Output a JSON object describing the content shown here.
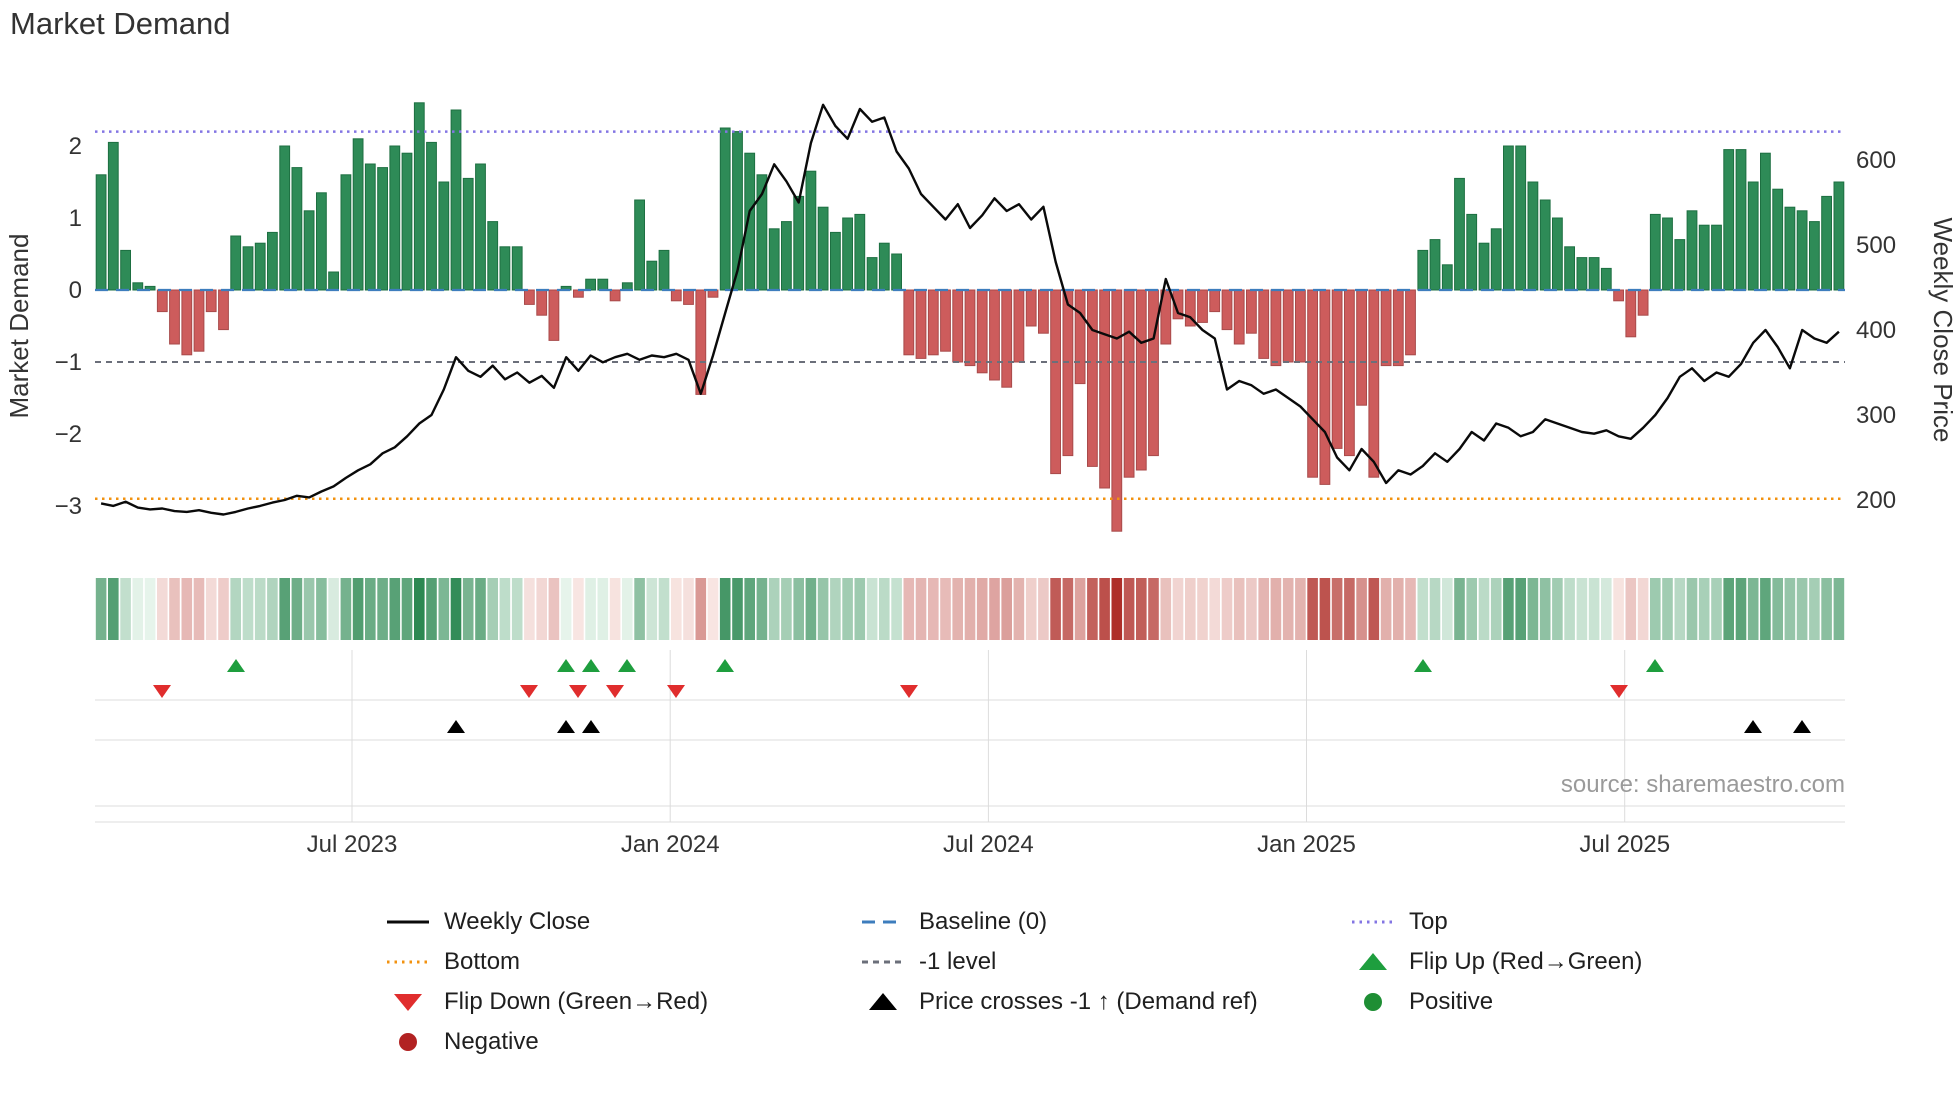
{
  "title": "Market Demand",
  "source": "source: sharemaestro.com",
  "colors": {
    "bar_positive": "#2E8B57",
    "bar_positive_edge": "#1d6f41",
    "bar_negative": "#CD5C5C",
    "bar_negative_edge": "#a84a4a",
    "price_line": "#0a0a0a",
    "baseline": "#3d7dbd",
    "top": "#8375e3",
    "bottom": "#f2920f",
    "minus_one": "#6b6f7a",
    "flip_up": "#1e9e3e",
    "flip_down": "#e02d2d",
    "price_cross": "#000000",
    "positive_dot": "#1e8e34",
    "negative_dot": "#B22222"
  },
  "legend": {
    "weekly_close": "Weekly Close",
    "baseline": "Baseline (0)",
    "top": "Top",
    "bottom": "Bottom",
    "minus_one": "-1 level",
    "flip_up": "Flip Up (Red→Green)",
    "flip_down": "Flip Down (Green→Red)",
    "price_cross": "Price crosses -1 ↑ (Demand ref)",
    "positive": "Positive",
    "negative": "Negative"
  },
  "chart_data": {
    "type": "line+bar",
    "title": "Market Demand",
    "x_axis": {
      "n_points": 143,
      "ticks": [
        {
          "label": "Jul 2023",
          "pos": 20.5
        },
        {
          "label": "Jan 2024",
          "pos": 46.5
        },
        {
          "label": "Jul 2024",
          "pos": 72.5
        },
        {
          "label": "Jan 2025",
          "pos": 98.5
        },
        {
          "label": "Jul 2025",
          "pos": 124.5
        }
      ]
    },
    "left_axis": {
      "label": "Market Demand",
      "range": [
        -3.6,
        2.9
      ],
      "ticks": [
        {
          "label": "2",
          "value": 2
        },
        {
          "label": "1",
          "value": 1
        },
        {
          "label": "0",
          "value": 0
        },
        {
          "label": "−1",
          "value": -1
        },
        {
          "label": "−2",
          "value": -2
        },
        {
          "label": "−3",
          "value": -3
        }
      ]
    },
    "right_axis": {
      "label": "Weekly Close Price",
      "range": [
        150,
        700
      ],
      "ticks": [
        {
          "label": "600",
          "value": 600
        },
        {
          "label": "500",
          "value": 500
        },
        {
          "label": "400",
          "value": 400
        },
        {
          "label": "300",
          "value": 300
        },
        {
          "label": "200",
          "value": 200
        }
      ]
    },
    "series": [
      {
        "name": "Market Demand",
        "type": "bar",
        "axis": "left",
        "values": [
          1.6,
          2.05,
          0.55,
          0.1,
          0.05,
          -0.3,
          -0.75,
          -0.9,
          -0.85,
          -0.3,
          -0.55,
          0.75,
          0.6,
          0.65,
          0.8,
          2.0,
          1.7,
          1.1,
          1.35,
          0.25,
          1.6,
          2.1,
          1.75,
          1.7,
          2.0,
          1.9,
          2.6,
          2.05,
          1.5,
          2.5,
          1.55,
          1.75,
          0.95,
          0.6,
          0.6,
          -0.2,
          -0.35,
          -0.7,
          0.05,
          -0.1,
          0.15,
          0.15,
          -0.15,
          0.1,
          1.25,
          0.4,
          0.55,
          -0.15,
          -0.2,
          -1.45,
          -0.1,
          2.25,
          2.2,
          1.9,
          1.6,
          0.85,
          0.95,
          1.3,
          1.65,
          1.15,
          0.8,
          1.0,
          1.05,
          0.45,
          0.65,
          0.5,
          -0.9,
          -0.95,
          -0.9,
          -0.85,
          -1.0,
          -1.05,
          -1.15,
          -1.25,
          -1.35,
          -1.0,
          -0.5,
          -0.6,
          -2.55,
          -2.3,
          -1.3,
          -2.45,
          -2.75,
          -3.35,
          -2.6,
          -2.5,
          -2.3,
          -0.75,
          -0.4,
          -0.5,
          -0.45,
          -0.3,
          -0.55,
          -0.75,
          -0.6,
          -0.95,
          -1.05,
          -1.0,
          -1.0,
          -2.6,
          -2.7,
          -2.2,
          -2.3,
          -1.6,
          -2.6,
          -1.05,
          -1.05,
          -0.9,
          0.55,
          0.7,
          0.35,
          1.55,
          1.05,
          0.65,
          0.85,
          2.0,
          2.0,
          1.5,
          1.25,
          1.0,
          0.6,
          0.45,
          0.45,
          0.3,
          -0.15,
          -0.65,
          -0.35,
          1.05,
          1.0,
          0.7,
          1.1,
          0.9,
          0.9,
          1.95,
          1.95,
          1.5,
          1.9,
          1.4,
          1.15,
          1.1,
          0.95,
          1.3,
          1.5
        ]
      },
      {
        "name": "Weekly Close",
        "type": "line",
        "axis": "right",
        "values": [
          196,
          193,
          198,
          191,
          189,
          190,
          187,
          186,
          188,
          185,
          183,
          186,
          190,
          193,
          197,
          200,
          205,
          203,
          210,
          216,
          226,
          235,
          242,
          255,
          262,
          275,
          290,
          300,
          330,
          368,
          352,
          345,
          358,
          342,
          350,
          338,
          346,
          332,
          368,
          352,
          370,
          362,
          368,
          372,
          365,
          370,
          368,
          372,
          365,
          325,
          370,
          420,
          470,
          540,
          560,
          595,
          575,
          550,
          620,
          665,
          640,
          625,
          660,
          645,
          650,
          610,
          590,
          560,
          545,
          530,
          548,
          520,
          535,
          555,
          540,
          548,
          530,
          545,
          480,
          430,
          420,
          400,
          395,
          390,
          398,
          385,
          390,
          460,
          420,
          415,
          400,
          390,
          330,
          340,
          335,
          325,
          330,
          320,
          310,
          295,
          280,
          250,
          235,
          260,
          245,
          220,
          235,
          230,
          240,
          255,
          245,
          260,
          280,
          270,
          290,
          285,
          275,
          280,
          295,
          290,
          285,
          280,
          278,
          282,
          275,
          272,
          285,
          300,
          320,
          345,
          355,
          340,
          350,
          345,
          360,
          385,
          400,
          380,
          355,
          400,
          390,
          385,
          398
        ]
      }
    ],
    "reference_lines": [
      {
        "key": "baseline",
        "label": "Baseline (0)",
        "value": 0,
        "dash": "13 8",
        "width": 2.2
      },
      {
        "key": "top",
        "label": "Top",
        "value": 2.2,
        "dash": "2.5 4.5",
        "width": 2.5
      },
      {
        "key": "bottom",
        "label": "Bottom",
        "value": -2.9,
        "dash": "2.5 4.5",
        "width": 2.5
      },
      {
        "key": "minus_one",
        "label": "-1 level",
        "value": -1,
        "dash": "6 5",
        "width": 2
      }
    ],
    "markers": {
      "flip_up": {
        "shape": "triangle-up",
        "indices": [
          11,
          38,
          40,
          43,
          51,
          108,
          127
        ]
      },
      "flip_down": {
        "shape": "triangle-down",
        "indices": [
          5,
          35,
          39,
          42,
          47,
          66,
          124
        ]
      },
      "price_cross": {
        "shape": "triangle-up",
        "indices": [
          29,
          38,
          40,
          135,
          139
        ]
      }
    },
    "heatmap": {
      "derived_from": "Market Demand",
      "positive_color": "#2E8B57",
      "negative_color": "#B22222"
    }
  }
}
